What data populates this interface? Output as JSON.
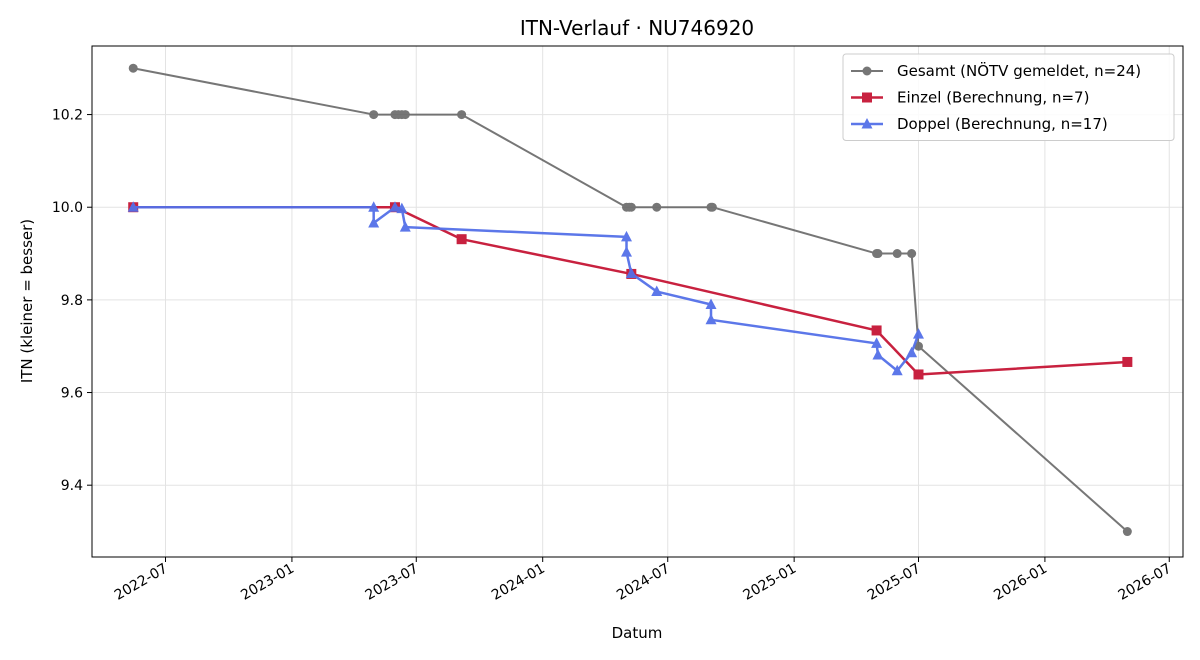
{
  "chart_data": {
    "type": "line",
    "title": "ITN-Verlauf · NU746920",
    "xlabel": "Datum",
    "ylabel": "ITN  (kleiner = besser)",
    "xlim": [
      "2022-03-16",
      "2026-07-21"
    ],
    "ylim": [
      9.245,
      10.348
    ],
    "x_ticks": [
      "2022-07",
      "2023-01",
      "2023-07",
      "2024-01",
      "2024-07",
      "2025-01",
      "2025-07",
      "2026-01",
      "2026-07"
    ],
    "y_ticks": [
      9.4,
      9.6,
      9.8,
      10.0,
      10.2
    ],
    "grid": true,
    "legend_position": "top-right",
    "series": [
      {
        "name": "Gesamt (NÖTV gemeldet, n=24)",
        "color": "#555555",
        "marker": "circle",
        "points": [
          [
            "2022-05-15",
            10.3
          ],
          [
            "2023-04-30",
            10.2
          ],
          [
            "2023-05-31",
            10.2
          ],
          [
            "2023-06-05",
            10.2
          ],
          [
            "2023-06-10",
            10.2
          ],
          [
            "2023-06-15",
            10.2
          ],
          [
            "2023-09-05",
            10.2
          ],
          [
            "2024-05-02",
            10.0
          ],
          [
            "2024-05-06",
            10.0
          ],
          [
            "2024-05-09",
            10.0
          ],
          [
            "2024-06-15",
            10.0
          ],
          [
            "2024-09-02",
            10.0
          ],
          [
            "2024-09-04",
            10.0
          ],
          [
            "2025-05-01",
            9.9
          ],
          [
            "2025-05-03",
            9.9
          ],
          [
            "2025-05-31",
            9.9
          ],
          [
            "2025-06-21",
            9.9
          ],
          [
            "2025-07-01",
            9.7
          ],
          [
            "2026-05-01",
            9.3
          ]
        ]
      },
      {
        "name": "Einzel (Berechnung, n=7)",
        "color": "#c8213f",
        "marker": "square",
        "points": [
          [
            "2022-05-15",
            10.0
          ],
          [
            "2023-05-31",
            10.0
          ],
          [
            "2023-09-05",
            9.931
          ],
          [
            "2024-05-09",
            9.856
          ],
          [
            "2025-05-01",
            9.734
          ],
          [
            "2025-07-01",
            9.639
          ],
          [
            "2026-05-01",
            9.666
          ]
        ]
      },
      {
        "name": "Doppel (Berechnung, n=17)",
        "color": "#5470e8",
        "marker": "triangle",
        "points": [
          [
            "2022-05-15",
            10.0
          ],
          [
            "2023-04-30",
            10.0
          ],
          [
            "2023-04-30",
            9.966
          ],
          [
            "2023-05-31",
            10.0
          ],
          [
            "2023-06-10",
            9.997
          ],
          [
            "2023-06-15",
            9.957
          ],
          [
            "2024-05-02",
            9.936
          ],
          [
            "2024-05-02",
            9.903
          ],
          [
            "2024-05-09",
            9.857
          ],
          [
            "2024-06-15",
            9.818
          ],
          [
            "2024-09-02",
            9.79
          ],
          [
            "2024-09-02",
            9.757
          ],
          [
            "2025-05-01",
            9.706
          ],
          [
            "2025-05-03",
            9.681
          ],
          [
            "2025-05-31",
            9.647
          ],
          [
            "2025-06-21",
            9.686
          ],
          [
            "2025-07-01",
            9.726
          ]
        ]
      }
    ]
  }
}
